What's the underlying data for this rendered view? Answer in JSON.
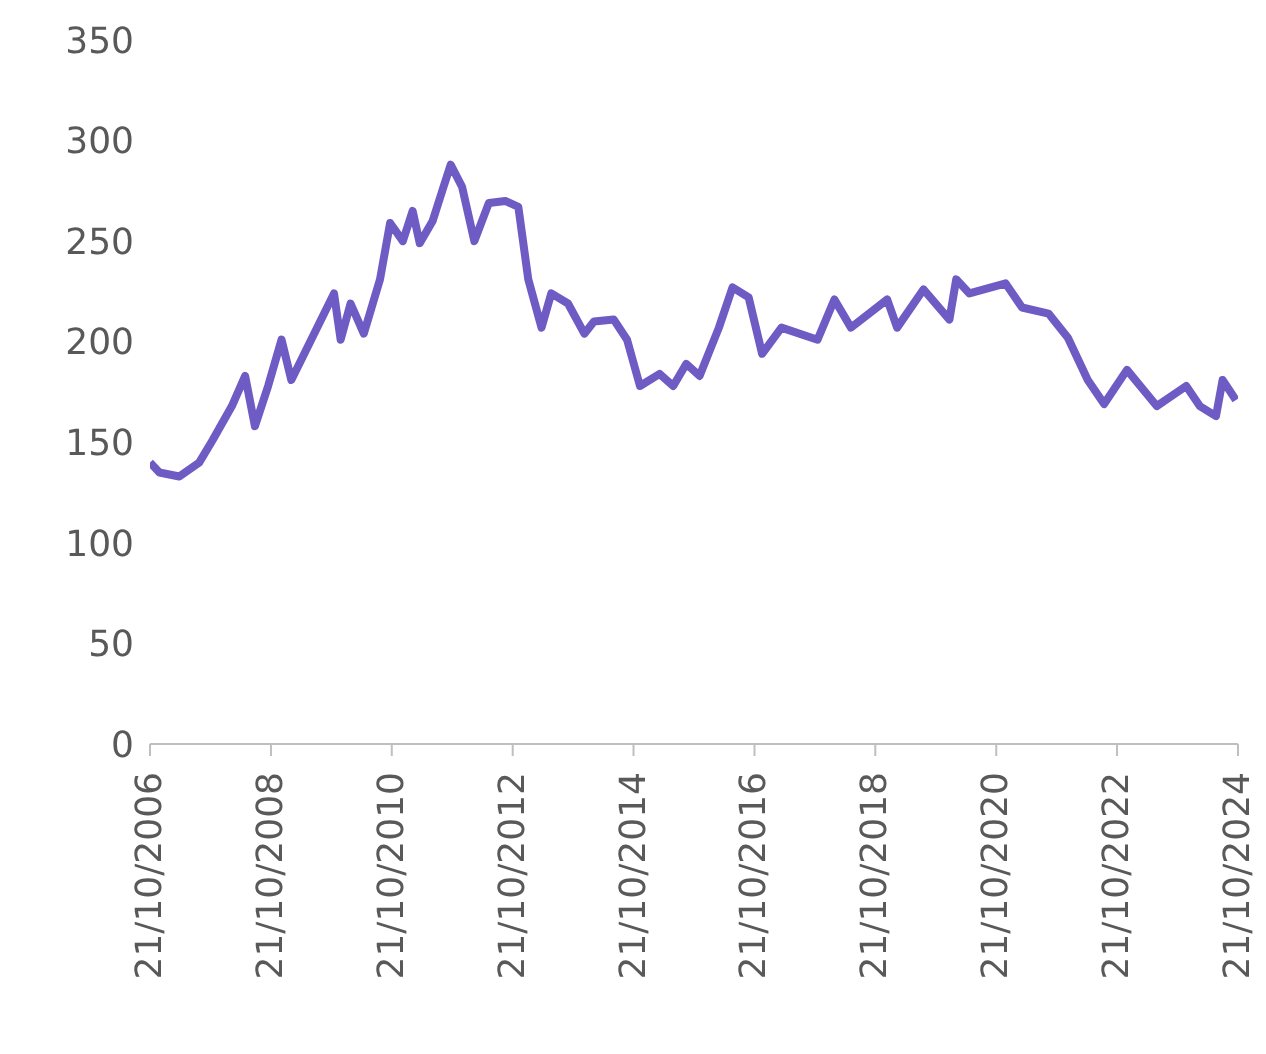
{
  "chart_data": {
    "type": "line",
    "x": [
      "2006-10-21",
      "2006-12-17",
      "2007-04-16",
      "2007-08-15",
      "2007-11-03",
      "2008-02-28",
      "2008-05-18",
      "2008-07-16",
      "2008-10-04",
      "2008-12-24",
      "2009-02-21",
      "2009-06-21",
      "2009-11-06",
      "2009-12-16",
      "2010-02-14",
      "2010-05-05",
      "2010-08-11",
      "2010-10-11",
      "2010-12-27",
      "2011-02-24",
      "2011-04-08",
      "2011-06-25",
      "2011-08-22",
      "2011-10-12",
      "2011-12-20",
      "2012-03-03",
      "2012-05-30",
      "2012-09-06",
      "2012-11-24",
      "2013-01-23",
      "2013-04-13",
      "2013-06-11",
      "2013-09-20",
      "2013-12-28",
      "2014-02-24",
      "2014-06-24",
      "2014-09-12",
      "2014-11-29",
      "2015-03-28",
      "2015-06-18",
      "2015-09-05",
      "2015-11-24",
      "2016-03-20",
      "2016-06-10",
      "2016-09-16",
      "2016-12-06",
      "2017-04-02",
      "2017-11-06",
      "2018-02-16",
      "2018-05-27",
      "2019-01-01",
      "2019-03-02",
      "2019-08-08",
      "2020-01-12",
      "2020-02-22",
      "2020-05-12",
      "2020-12-17",
      "2021-03-26",
      "2021-09-02",
      "2021-12-28",
      "2022-04-27",
      "2022-08-04",
      "2022-12-20",
      "2023-06-18",
      "2023-12-13",
      "2024-03-04",
      "2024-06-10",
      "2024-07-20",
      "2024-10-08"
    ],
    "series": [
      {
        "color": "#6f5bc4",
        "values": [
          140,
          135,
          133,
          140,
          151,
          168,
          183,
          158,
          178,
          201,
          181,
          201,
          224,
          201,
          219,
          204,
          231,
          259,
          250,
          265,
          249,
          260,
          275,
          288,
          277,
          250,
          269,
          270,
          267,
          231,
          207,
          224,
          219,
          204,
          210,
          211,
          201,
          178,
          184,
          178,
          189,
          183,
          207,
          227,
          222,
          194,
          207,
          201,
          221,
          207,
          221,
          207,
          226,
          211,
          231,
          224,
          229,
          217,
          214,
          202,
          181,
          169,
          186,
          168,
          178,
          168,
          163,
          181,
          171
        ]
      }
    ],
    "ylim": [
      0,
      350
    ],
    "yticks": [
      0,
      50,
      100,
      150,
      200,
      250,
      300,
      350
    ],
    "xlim": [
      "2006-10-21",
      "2024-10-21"
    ],
    "xticks": [
      {
        "value": "2006-10-21",
        "label": "21/10/2006"
      },
      {
        "value": "2008-10-21",
        "label": "21/10/2008"
      },
      {
        "value": "2010-10-21",
        "label": "21/10/2010"
      },
      {
        "value": "2012-10-21",
        "label": "21/10/2012"
      },
      {
        "value": "2014-10-21",
        "label": "21/10/2014"
      },
      {
        "value": "2016-10-21",
        "label": "21/10/2016"
      },
      {
        "value": "2018-10-21",
        "label": "21/10/2018"
      },
      {
        "value": "2020-10-21",
        "label": "21/10/2020"
      },
      {
        "value": "2022-10-21",
        "label": "21/10/2022"
      },
      {
        "value": "2024-10-21",
        "label": "21/10/2024"
      }
    ],
    "grid": false,
    "legend": false,
    "marker": "none",
    "line_style": "solid"
  }
}
